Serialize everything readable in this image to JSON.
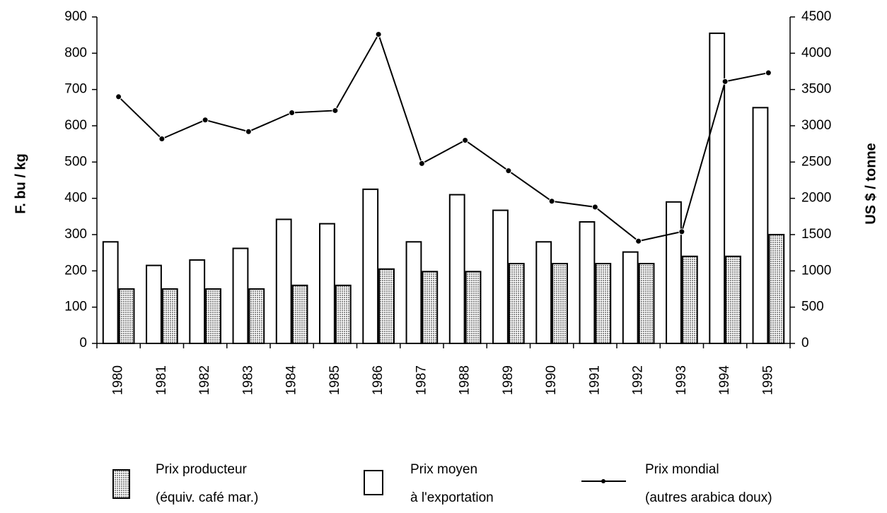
{
  "chart_data": {
    "type": "bar-line",
    "y_label": "F. bu / kg",
    "y2_label": "US $ / tonne",
    "categories": [
      "1980",
      "1981",
      "1982",
      "1983",
      "1984",
      "1985",
      "1986",
      "1987",
      "1988",
      "1989",
      "1990",
      "1991",
      "1992",
      "1993",
      "1994",
      "1995"
    ],
    "series": [
      {
        "name": [
          "Prix moyen",
          "à l'exportation"
        ],
        "color": "#ffffff",
        "kind": "bar",
        "values": [
          280,
          215,
          230,
          262,
          342,
          330,
          425,
          280,
          410,
          367,
          280,
          335,
          252,
          390,
          855,
          650
        ]
      },
      {
        "name": [
          "Prix producteur",
          "(équiv. café mar.)"
        ],
        "color": "#8c8c8c",
        "kind": "bar",
        "pattern": "dots",
        "values": [
          150,
          150,
          150,
          150,
          160,
          160,
          205,
          198,
          198,
          220,
          220,
          220,
          220,
          240,
          240,
          300
        ]
      },
      {
        "name": [
          "Prix mondial",
          "(autres arabica doux)"
        ],
        "color": "#000000",
        "kind": "line",
        "axis": "y2",
        "values": [
          3400,
          2820,
          3080,
          2920,
          3180,
          3210,
          4260,
          2480,
          2800,
          2380,
          1960,
          1880,
          1410,
          1540,
          3610,
          3730
        ]
      }
    ],
    "ylim": [
      0,
      900
    ],
    "yticks": [
      0,
      100,
      200,
      300,
      400,
      500,
      600,
      700,
      800,
      900
    ],
    "y2lim": [
      0,
      4500
    ],
    "y2ticks": [
      0,
      500,
      1000,
      1500,
      2000,
      2500,
      3000,
      3500,
      4000,
      4500
    ]
  }
}
